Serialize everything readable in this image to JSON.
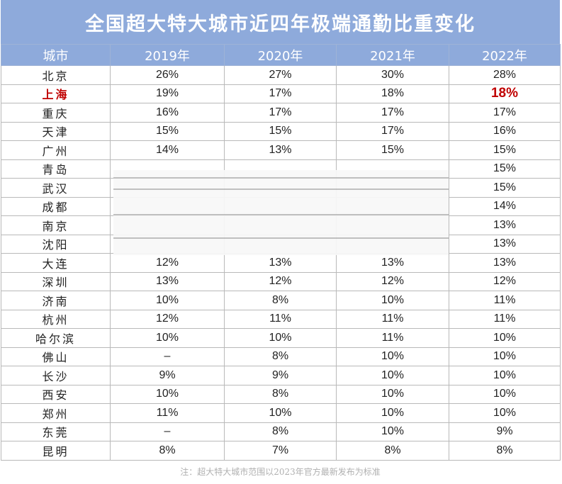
{
  "chart_data": {
    "type": "table",
    "title": "全国超大特大城市近四年极端通勤比重变化",
    "columns": [
      "城市",
      "2019年",
      "2020年",
      "2021年",
      "2022年"
    ],
    "rows": [
      [
        "北京",
        "26%",
        "27%",
        "30%",
        "28%"
      ],
      [
        "上海",
        "19%",
        "17%",
        "18%",
        "18%"
      ],
      [
        "重庆",
        "16%",
        "17%",
        "17%",
        "17%"
      ],
      [
        "天津",
        "15%",
        "15%",
        "17%",
        "16%"
      ],
      [
        "广州",
        "14%",
        "13%",
        "15%",
        "15%"
      ],
      [
        "青岛",
        "",
        "",
        "",
        "15%"
      ],
      [
        "武汉",
        "",
        "",
        "",
        "15%"
      ],
      [
        "成都",
        "",
        "",
        "",
        "14%"
      ],
      [
        "南京",
        "",
        "",
        "",
        "13%"
      ],
      [
        "沈阳",
        "",
        "",
        "",
        "13%"
      ],
      [
        "大连",
        "12%",
        "13%",
        "13%",
        "13%"
      ],
      [
        "深圳",
        "13%",
        "12%",
        "12%",
        "12%"
      ],
      [
        "济南",
        "10%",
        "8%",
        "10%",
        "11%"
      ],
      [
        "杭州",
        "12%",
        "11%",
        "11%",
        "11%"
      ],
      [
        "哈尔滨",
        "10%",
        "10%",
        "11%",
        "10%"
      ],
      [
        "佛山",
        "–",
        "8%",
        "10%",
        "10%"
      ],
      [
        "长沙",
        "9%",
        "9%",
        "10%",
        "10%"
      ],
      [
        "西安",
        "10%",
        "8%",
        "10%",
        "10%"
      ],
      [
        "郑州",
        "11%",
        "10%",
        "10%",
        "10%"
      ],
      [
        "东莞",
        "–",
        "8%",
        "10%",
        "9%"
      ],
      [
        "昆明",
        "8%",
        "7%",
        "8%",
        "8%"
      ]
    ],
    "highlight_row": "上海",
    "note": "注：超大特大城市范围以2023年官方最新发布为标准",
    "colors": {
      "header_bg": "#8eaadb",
      "header_text": "#ffffff",
      "highlight": "#c00000"
    }
  }
}
